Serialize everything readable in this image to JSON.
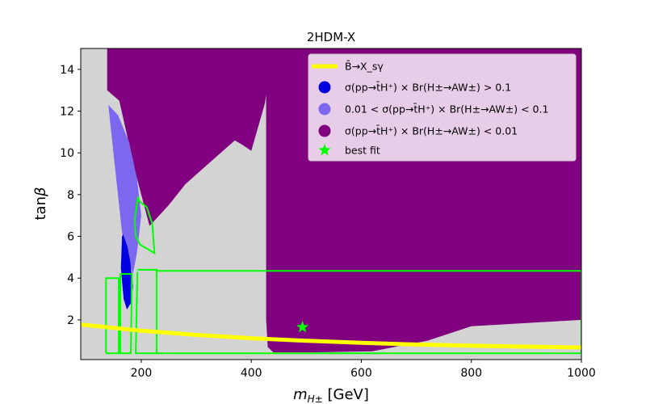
{
  "chart_data": {
    "type": "scatter",
    "title": "2HDM-X",
    "xlabel": "m_{H^±} [GeV]",
    "ylabel": "tanβ",
    "xlim": [
      90,
      1000
    ],
    "ylim": [
      0.1,
      15
    ],
    "x_ticks": [
      200,
      400,
      600,
      800,
      1000
    ],
    "y_ticks": [
      2,
      4,
      6,
      8,
      10,
      12,
      14
    ],
    "grid": false,
    "legend_position": "top-right",
    "colors": {
      "background_region": "#d3d3d3",
      "purple": "#800080",
      "blue": "#0000e0",
      "mediumslateblue": "#7b68ee",
      "yellow": "#ffff00",
      "lime": "#00ff00",
      "legend_bg": "#e8cde8"
    },
    "series": [
      {
        "name": "B̄→X_sγ",
        "kind": "line",
        "x": [
          90,
          200,
          300,
          400,
          500,
          600,
          700,
          800,
          900,
          1000
        ],
        "y": [
          1.78,
          1.48,
          1.28,
          1.12,
          1.0,
          0.9,
          0.82,
          0.76,
          0.72,
          0.68
        ]
      },
      {
        "name": "σ(pp→t̄H⁺) × Br(H±→AW±) > 0.1",
        "kind": "region",
        "x": [
          165,
          167,
          175,
          180,
          185,
          181,
          174,
          168,
          163
        ],
        "y": [
          6.0,
          6.1,
          5.5,
          4.8,
          3.6,
          2.8,
          2.5,
          3.0,
          4.5
        ]
      },
      {
        "name": "0.01 < σ(pp→t̄H⁺) × Br(H±→AW±) < 0.1",
        "kind": "region",
        "x": [
          140,
          158,
          178,
          192,
          200,
          192,
          185,
          175,
          165
        ],
        "y": [
          12.3,
          11.8,
          10.5,
          8.8,
          7.0,
          5.2,
          4.2,
          5.0,
          6.2
        ]
      },
      {
        "name": "σ(pp→t̄H⁺) × Br(H±→AW±) < 0.01",
        "kind": "region",
        "x": [
          138,
          1000,
          1000,
          800,
          720,
          620,
          520,
          440,
          430,
          427,
          427,
          425,
          413,
          400,
          383,
          370,
          280,
          250,
          215,
          190,
          160,
          138
        ],
        "y": [
          15.0,
          15.0,
          2.0,
          1.7,
          1.0,
          0.5,
          0.45,
          0.45,
          0.7,
          2.0,
          12.8,
          12.4,
          11.3,
          10.1,
          10.4,
          10.6,
          8.5,
          7.5,
          6.5,
          9.0,
          12.5,
          13.0
        ]
      },
      {
        "name": "best fit",
        "kind": "point",
        "x": [
          493
        ],
        "y": [
          1.65
        ]
      }
    ],
    "contours": [
      {
        "x": [
          136,
          136,
          159,
          159,
          162,
          162,
          183,
          181,
          136
        ],
        "y": [
          0.4,
          4.0,
          4.0,
          0.4,
          0.4,
          4.2,
          4.2,
          0.4,
          0.4
        ]
      },
      {
        "x": [
          193,
          190,
          198,
          228,
          228,
          193
        ],
        "y": [
          4.3,
          0.4,
          0.4,
          0.4,
          4.4,
          4.4
        ]
      },
      {
        "x": [
          228,
          228,
          1000,
          1000,
          228
        ],
        "y": [
          4.3,
          0.4,
          0.4,
          4.35,
          4.35
        ]
      },
      {
        "x": [
          194,
          188,
          190,
          198,
          224,
          220,
          210,
          196,
          194
        ],
        "y": [
          7.9,
          6.8,
          6.0,
          5.6,
          5.2,
          6.6,
          7.4,
          7.7,
          7.9
        ]
      }
    ]
  }
}
